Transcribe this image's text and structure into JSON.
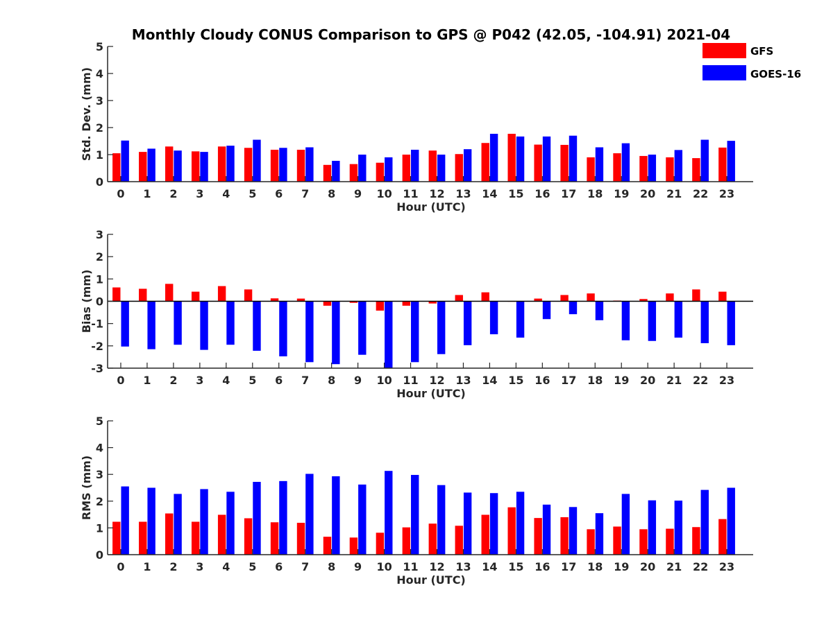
{
  "figure": {
    "title": "Monthly Cloudy CONUS Comparison to GPS @ P042 (42.05, -104.91) 2021-04",
    "legend": [
      {
        "name": "GFS",
        "color": "#ff0000"
      },
      {
        "name": "GOES-16",
        "color": "#0000ff"
      }
    ],
    "legend_placement": "top-right"
  },
  "chart_data": [
    {
      "type": "bar",
      "categories": [
        "0",
        "1",
        "2",
        "3",
        "4",
        "5",
        "6",
        "7",
        "8",
        "9",
        "10",
        "11",
        "12",
        "13",
        "14",
        "15",
        "16",
        "17",
        "18",
        "19",
        "20",
        "21",
        "22",
        "23"
      ],
      "xlabel": "Hour (UTC)",
      "ylabel": "Std. Dev. (mm)",
      "ylim": [
        0,
        5
      ],
      "yticks": [
        "0",
        "1",
        "2",
        "3",
        "4",
        "5"
      ],
      "series": [
        {
          "name": "GFS",
          "color": "#ff0000",
          "values": [
            1.05,
            1.1,
            1.3,
            1.12,
            1.3,
            1.25,
            1.18,
            1.18,
            0.62,
            0.65,
            0.7,
            1.0,
            1.15,
            1.02,
            1.43,
            1.77,
            1.37,
            1.36,
            0.9,
            1.05,
            0.95,
            0.9,
            0.87,
            1.26
          ]
        },
        {
          "name": "GOES-16",
          "color": "#0000ff",
          "values": [
            1.52,
            1.22,
            1.15,
            1.1,
            1.33,
            1.55,
            1.25,
            1.27,
            0.77,
            1.0,
            0.9,
            1.18,
            1.0,
            1.2,
            1.77,
            1.67,
            1.67,
            1.7,
            1.27,
            1.42,
            1.0,
            1.17,
            1.55,
            1.51
          ]
        }
      ]
    },
    {
      "type": "bar",
      "categories": [
        "0",
        "1",
        "2",
        "3",
        "4",
        "5",
        "6",
        "7",
        "8",
        "9",
        "10",
        "11",
        "12",
        "13",
        "14",
        "15",
        "16",
        "17",
        "18",
        "19",
        "20",
        "21",
        "22",
        "23"
      ],
      "xlabel": "Hour (UTC)",
      "ylabel": "Bias (mm)",
      "ylim": [
        -3,
        3
      ],
      "yticks": [
        "-3",
        "-2",
        "-1",
        "0",
        "1",
        "2",
        "3"
      ],
      "series": [
        {
          "name": "GFS",
          "color": "#ff0000",
          "values": [
            0.62,
            0.56,
            0.78,
            0.43,
            0.68,
            0.53,
            0.13,
            0.12,
            -0.2,
            -0.07,
            -0.42,
            -0.2,
            -0.1,
            0.28,
            0.4,
            0.0,
            0.12,
            0.28,
            0.35,
            0.03,
            0.1,
            0.35,
            0.53,
            0.43
          ]
        },
        {
          "name": "GOES-16",
          "color": "#0000ff",
          "values": [
            -2.03,
            -2.15,
            -1.95,
            -2.18,
            -1.95,
            -2.22,
            -2.47,
            -2.73,
            -2.82,
            -2.4,
            -3.0,
            -2.73,
            -2.37,
            -1.97,
            -1.48,
            -1.63,
            -0.8,
            -0.58,
            -0.85,
            -1.75,
            -1.78,
            -1.63,
            -1.88,
            -1.97
          ]
        }
      ]
    },
    {
      "type": "bar",
      "categories": [
        "0",
        "1",
        "2",
        "3",
        "4",
        "5",
        "6",
        "7",
        "8",
        "9",
        "10",
        "11",
        "12",
        "13",
        "14",
        "15",
        "16",
        "17",
        "18",
        "19",
        "20",
        "21",
        "22",
        "23"
      ],
      "xlabel": "Hour (UTC)",
      "ylabel": "RMS (mm)",
      "ylim": [
        0,
        5
      ],
      "yticks": [
        "0",
        "1",
        "2",
        "3",
        "4",
        "5"
      ],
      "series": [
        {
          "name": "GFS",
          "color": "#ff0000",
          "values": [
            1.23,
            1.23,
            1.54,
            1.23,
            1.49,
            1.36,
            1.21,
            1.19,
            0.67,
            0.64,
            0.82,
            1.02,
            1.16,
            1.08,
            1.49,
            1.77,
            1.37,
            1.4,
            0.95,
            1.05,
            0.95,
            0.97,
            1.03,
            1.33
          ]
        },
        {
          "name": "GOES-16",
          "color": "#0000ff",
          "values": [
            2.55,
            2.5,
            2.27,
            2.45,
            2.35,
            2.72,
            2.75,
            3.02,
            2.93,
            2.62,
            3.13,
            2.98,
            2.6,
            2.32,
            2.3,
            2.35,
            1.87,
            1.78,
            1.55,
            2.27,
            2.03,
            2.02,
            2.42,
            2.5
          ]
        }
      ]
    }
  ]
}
